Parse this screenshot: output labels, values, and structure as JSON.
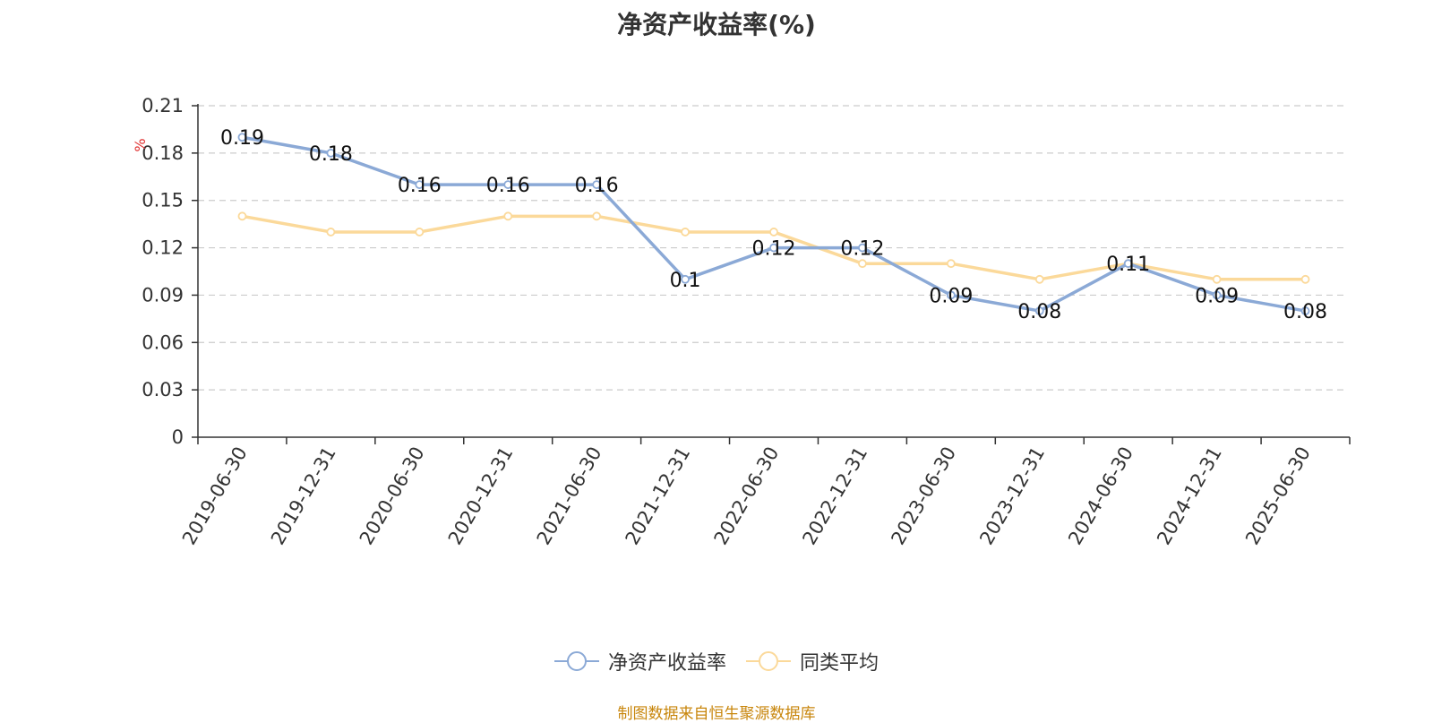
{
  "chart_data": {
    "type": "line",
    "title": "净资产收益率(%)",
    "ylabel": "%",
    "xlabel": "",
    "categories": [
      "2019-06-30",
      "2019-12-31",
      "2020-06-30",
      "2020-12-31",
      "2021-06-30",
      "2021-12-31",
      "2022-06-30",
      "2022-12-31",
      "2023-06-30",
      "2023-12-31",
      "2024-06-30",
      "2024-12-31",
      "2025-06-30"
    ],
    "y_ticks": [
      "0",
      "0.03",
      "0.06",
      "0.09",
      "0.12",
      "0.15",
      "0.18",
      "0.21"
    ],
    "ylim": [
      0,
      0.21
    ],
    "grid": true,
    "legend_position": "bottom",
    "series": [
      {
        "name": "净资产收益率",
        "color": "#8ba9d6",
        "values": [
          0.19,
          0.18,
          0.16,
          0.16,
          0.16,
          0.1,
          0.12,
          0.12,
          0.09,
          0.08,
          0.11,
          0.09,
          0.08
        ],
        "labels": [
          "0.19",
          "0.18",
          "0.16",
          "0.16",
          "0.16",
          "0.1",
          "0.12",
          "0.12",
          "0.09",
          "0.08",
          "0.11",
          "0.09",
          "0.08"
        ]
      },
      {
        "name": "同类平均",
        "color": "#fbd99a",
        "values": [
          0.14,
          0.13,
          0.13,
          0.14,
          0.14,
          0.13,
          0.13,
          0.11,
          0.11,
          0.1,
          0.11,
          0.1,
          0.1
        ]
      }
    ]
  },
  "source_note": "制图数据来自恒生聚源数据库"
}
